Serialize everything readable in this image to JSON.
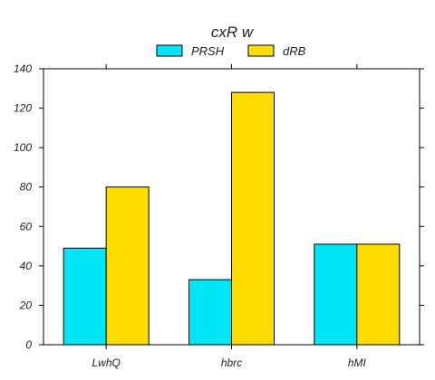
{
  "chart_data": {
    "type": "bar",
    "title": "cxR  w",
    "categories": [
      "LwhQ",
      "hbrc",
      "hMI"
    ],
    "series": [
      {
        "name": "PRSH",
        "values": [
          49,
          33,
          51
        ],
        "color": "#00e5f7"
      },
      {
        "name": "dRB",
        "values": [
          80,
          128,
          51
        ],
        "color": "#ffdc00"
      }
    ],
    "ylim": [
      0,
      140
    ],
    "yticks": [
      0,
      20,
      40,
      60,
      80,
      100,
      120,
      140
    ],
    "legend": "top-center",
    "grid": false
  }
}
